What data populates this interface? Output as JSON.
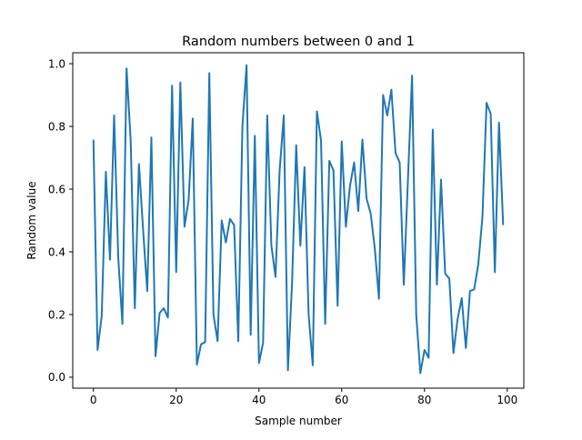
{
  "chart_data": {
    "type": "line",
    "title": "Random numbers between 0 and 1",
    "xlabel": "Sample number",
    "ylabel": "Random value",
    "xlim": [
      -5,
      104
    ],
    "ylim": [
      -0.035,
      1.035
    ],
    "xticks": [
      0,
      20,
      40,
      60,
      80,
      100
    ],
    "yticks": [
      0.0,
      0.2,
      0.4,
      0.6,
      0.8,
      1.0
    ],
    "xtick_labels": [
      "0",
      "20",
      "40",
      "60",
      "80",
      "100"
    ],
    "ytick_labels": [
      "0.0",
      "0.2",
      "0.4",
      "0.6",
      "0.8",
      "1.0"
    ],
    "grid": false,
    "series": [
      {
        "color": "#1f77b4",
        "x": [
          0,
          1,
          2,
          3,
          4,
          5,
          6,
          7,
          8,
          9,
          10,
          11,
          12,
          13,
          14,
          15,
          16,
          17,
          18,
          19,
          20,
          21,
          22,
          23,
          24,
          25,
          26,
          27,
          28,
          29,
          30,
          31,
          32,
          33,
          34,
          35,
          36,
          37,
          38,
          39,
          40,
          41,
          42,
          43,
          44,
          45,
          46,
          47,
          48,
          49,
          50,
          51,
          52,
          53,
          54,
          55,
          56,
          57,
          58,
          59,
          60,
          61,
          62,
          63,
          64,
          65,
          66,
          67,
          68,
          69,
          70,
          71,
          72,
          73,
          74,
          75,
          76,
          77,
          78,
          79,
          80,
          81,
          82,
          83,
          84,
          85,
          86,
          87,
          88,
          89,
          90,
          91,
          92,
          93,
          94,
          95,
          96,
          97,
          98,
          99
        ],
        "y": [
          0.755,
          0.087,
          0.195,
          0.655,
          0.375,
          0.835,
          0.38,
          0.17,
          0.985,
          0.755,
          0.22,
          0.68,
          0.47,
          0.275,
          0.765,
          0.067,
          0.205,
          0.22,
          0.19,
          0.93,
          0.335,
          0.94,
          0.48,
          0.565,
          0.825,
          0.04,
          0.105,
          0.112,
          0.97,
          0.2,
          0.115,
          0.5,
          0.43,
          0.505,
          0.485,
          0.115,
          0.8,
          0.995,
          0.135,
          0.77,
          0.045,
          0.11,
          0.835,
          0.42,
          0.32,
          0.66,
          0.835,
          0.022,
          0.3,
          0.74,
          0.42,
          0.67,
          0.2,
          0.038,
          0.848,
          0.755,
          0.17,
          0.69,
          0.66,
          0.228,
          0.752,
          0.48,
          0.61,
          0.685,
          0.53,
          0.758,
          0.57,
          0.522,
          0.41,
          0.25,
          0.9,
          0.835,
          0.917,
          0.715,
          0.685,
          0.295,
          0.63,
          0.962,
          0.2,
          0.013,
          0.087,
          0.062,
          0.79,
          0.295,
          0.63,
          0.33,
          0.315,
          0.077,
          0.185,
          0.252,
          0.093,
          0.275,
          0.28,
          0.36,
          0.51,
          0.875,
          0.84,
          0.335,
          0.812,
          0.488
        ]
      }
    ]
  }
}
